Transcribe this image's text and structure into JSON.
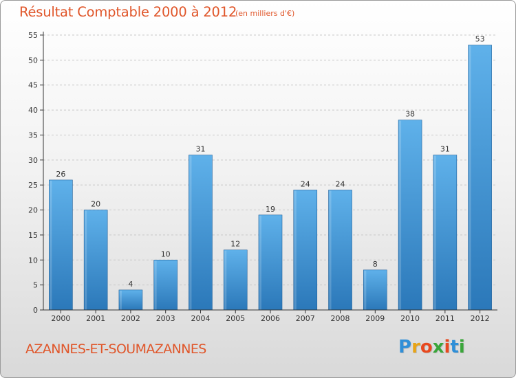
{
  "header": {
    "title": "Résultat Comptable 2000 à 2012",
    "subtitle": "(en milliers d'€)"
  },
  "footer": {
    "commune": "AZANNES-ET-SOUMAZANNES",
    "brand": {
      "letters": [
        "P",
        "r",
        "o",
        "x",
        "i",
        "t",
        "i"
      ],
      "colors": [
        "#2f8fd8",
        "#e8a417",
        "#e8491f",
        "#3aa63a",
        "#e8491f",
        "#2f8fd8",
        "#3aa63a"
      ]
    }
  },
  "colors": {
    "text_accent": "#e0562a",
    "bar_top": "#5fb1ea",
    "bar_bottom": "#2b78b9",
    "bar_edge": "#1f5f99",
    "axis": "#333333",
    "grid": "#c8c8c8"
  },
  "chart_data": {
    "type": "bar",
    "categories": [
      "2000",
      "2001",
      "2002",
      "2003",
      "2004",
      "2005",
      "2006",
      "2007",
      "2008",
      "2009",
      "2010",
      "2011",
      "2012"
    ],
    "values": [
      26,
      20,
      4,
      10,
      31,
      12,
      19,
      24,
      24,
      8,
      38,
      31,
      53
    ],
    "title": "Résultat Comptable 2000 à 2012",
    "subtitle": "(en milliers d'€)",
    "xlabel": "",
    "ylabel": "",
    "ylim": [
      0,
      55
    ],
    "yticks": [
      0,
      5,
      10,
      15,
      20,
      25,
      30,
      35,
      40,
      45,
      50,
      55
    ],
    "grid": "horizontal dashed",
    "data_labels": true
  }
}
